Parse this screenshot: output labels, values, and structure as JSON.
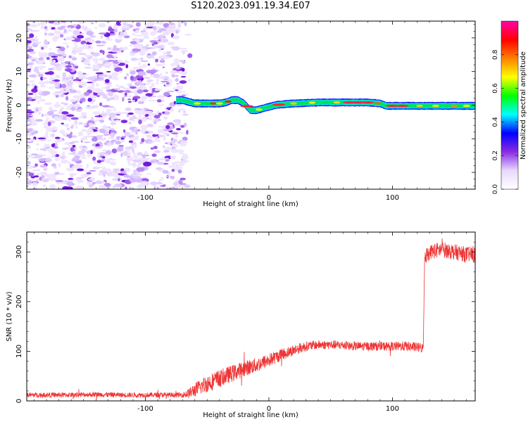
{
  "figure": {
    "title": "S120.2023.091.19.34.E07"
  },
  "chart_data": [
    {
      "id": "spectrogram",
      "type": "heatmap",
      "title": "S120.2023.091.19.34.E07",
      "xlabel": "Height of straight line (km)",
      "ylabel": "Frequency (Hz)",
      "xlim": [
        -196,
        167
      ],
      "ylim": [
        -25,
        25
      ],
      "xticks": [
        -100,
        0,
        100
      ],
      "xtick_labels": [
        "-100",
        "0",
        "100"
      ],
      "yticks": [
        -20,
        -10,
        0,
        10,
        20
      ],
      "ytick_labels": [
        "-20",
        "-10",
        "0",
        "10",
        "20"
      ],
      "grid": false,
      "noise_region_x": [
        -196,
        -73
      ],
      "signal_start_x": -75,
      "signal_frequency_track": {
        "x": [
          -75,
          -70,
          -60,
          -50,
          -45,
          -40,
          -35,
          -30,
          -25,
          -20,
          -15,
          -10,
          -5,
          0,
          5,
          10,
          20,
          40,
          60,
          80,
          90,
          95,
          100,
          120,
          140,
          167
        ],
        "freq": [
          1.5,
          1.5,
          0.5,
          0.5,
          0.5,
          0.5,
          0.8,
          1.5,
          1.5,
          0.5,
          -1.5,
          -1.5,
          -1.0,
          -0.5,
          0.0,
          0.2,
          0.5,
          0.8,
          0.8,
          0.8,
          0.5,
          -0.2,
          -0.2,
          -0.2,
          -0.2,
          -0.2
        ]
      },
      "colorbar": {
        "label": "Normalized spectral amplitude",
        "range": [
          0,
          1
        ],
        "ticks": [
          0,
          0.2,
          0.4,
          0.6,
          0.8
        ],
        "tick_labels": [
          "0.0",
          "0.2",
          "0.4",
          "0.6",
          "0.8"
        ],
        "colors": [
          "#ffffff",
          "#e8d8ff",
          "#8a2be2",
          "#0000ff",
          "#00ffff",
          "#00ff00",
          "#ffff00",
          "#ff8000",
          "#ff0000",
          "#ff00aa"
        ]
      }
    },
    {
      "id": "snr",
      "type": "line",
      "xlabel": "Height of straight line (km)",
      "ylabel": "SNR (10 * v/v)",
      "xlim": [
        -196,
        167
      ],
      "ylim": [
        0,
        340
      ],
      "xticks": [
        -100,
        0,
        100
      ],
      "xtick_labels": [
        "-100",
        "0",
        "100"
      ],
      "yticks": [
        0,
        100,
        200,
        300
      ],
      "ytick_labels": [
        "0",
        "100",
        "200",
        "300"
      ],
      "grid": false,
      "series": [
        {
          "color": "#ee3333",
          "x": [
            -196,
            -180,
            -160,
            -140,
            -120,
            -100,
            -90,
            -80,
            -70,
            -65,
            -60,
            -50,
            -40,
            -30,
            -20,
            -10,
            0,
            10,
            20,
            30,
            40,
            50,
            60,
            70,
            80,
            90,
            100,
            110,
            120,
            125,
            126,
            130,
            140,
            150,
            160,
            167
          ],
          "y": [
            12,
            12,
            12,
            13,
            12,
            12,
            12,
            12,
            12,
            15,
            22,
            35,
            45,
            55,
            65,
            72,
            82,
            93,
            102,
            110,
            113,
            113,
            112,
            110,
            110,
            110,
            110,
            110,
            108,
            106,
            290,
            300,
            305,
            300,
            295,
            295
          ],
          "noise_amplitude": [
            5,
            5,
            5,
            5,
            5,
            5,
            5,
            5,
            5,
            10,
            14,
            18,
            18,
            17,
            16,
            15,
            14,
            12,
            11,
            10,
            9,
            9,
            9,
            9,
            9,
            9,
            9,
            10,
            10,
            10,
            16,
            16,
            16,
            16,
            16,
            16
          ]
        }
      ]
    }
  ]
}
